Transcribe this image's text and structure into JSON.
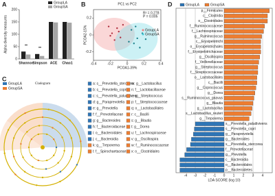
{
  "panel_labels": [
    "A",
    "B",
    "C",
    "D"
  ],
  "chart_data": [
    {
      "type": "bar",
      "y_label": "Alpha diversity measures",
      "categories": [
        "Shannon",
        "Simpson",
        "ACE",
        "Chao1"
      ],
      "series": [
        {
          "name": "GroupLA",
          "color": "#222222",
          "values": [
            30,
            20,
            150,
            150
          ]
        },
        {
          "name": "GroupSA",
          "color": "#a6a6a6",
          "values": [
            18,
            12,
            148,
            147
          ]
        }
      ],
      "annotations": [
        "**",
        "**"
      ],
      "ylim": [
        0,
        200
      ],
      "yticks": [
        0,
        50,
        100,
        150,
        200
      ]
    },
    {
      "type": "scatter",
      "title": "PC1 vs PC2",
      "x_label": "PCOA1-39%",
      "y_label": "PCOA2-15%",
      "annotations": [
        "R² = 0.278",
        "P = 0.005"
      ],
      "series": [
        {
          "name": "GroupLA",
          "color": "#f08080",
          "x": [
            -0.22,
            -0.18,
            -0.12,
            -0.08,
            -0.15,
            -0.05,
            -0.2,
            -0.1
          ],
          "y": [
            0.1,
            0.02,
            0.08,
            -0.03,
            -0.06,
            0.12,
            -0.01,
            0.04
          ]
        },
        {
          "name": "GroupSA",
          "color": "#48c9d6",
          "x": [
            0.05,
            0.12,
            0.18,
            0.08,
            0.15,
            0.22,
            0.02,
            0.1
          ],
          "y": [
            0.06,
            -0.04,
            0.02,
            -0.1,
            -0.15,
            -0.05,
            -0.08,
            0.1
          ]
        }
      ],
      "xlim": [
        -0.4,
        0.4
      ],
      "xticks": [
        -0.4,
        -0.2,
        0,
        0.2,
        0.4
      ],
      "ylim": [
        -0.3,
        0.3
      ],
      "yticks": [
        -0.2,
        0,
        0.2
      ]
    },
    {
      "type": "barh",
      "x_label": "LDA SCORE (log 10)",
      "categories": [
        "p__Firmicutes",
        "c__Clostridia",
        "o__Clostridiales",
        "f__Ruminococcaceae",
        "f__Lachnospiraceae",
        "g__Ruminococcus",
        "c__Erysipelotrichi",
        "o__Erysipelotrichales",
        "f__Erysipelotrichaceae",
        "g__Oscillospira",
        "f__Veillonellaceae",
        "g__Streptococcus",
        "f__Streptococcaceae",
        "o__Lactobacillales",
        "c__Bacilli",
        "g__Coprococcus",
        "g__Dorea",
        "s__Ruminococcus_gnavus",
        "g__Blautia",
        "g__Lactobacillus",
        "s__Lactobacillus_reuteri",
        "g__Treponema",
        "s__Prevotella_paludivivens",
        "s__Prevotella_copri",
        "g__Paraprevotella",
        "g__Bacteroides",
        "s__Prevotella_stercorea",
        "f__Prevotellaceae",
        "g__Prevotella",
        "c__Bacteroidia",
        "o__Bacteroidales",
        "p__Bacteroidetes"
      ],
      "series": [
        {
          "name": "GroupLA",
          "color": "#2e75b6",
          "values": [
            null,
            null,
            null,
            null,
            null,
            null,
            null,
            null,
            null,
            null,
            null,
            null,
            null,
            null,
            null,
            null,
            null,
            null,
            null,
            null,
            null,
            null,
            -3.0,
            -3.1,
            -3.2,
            -3.4,
            -3.5,
            -3.9,
            -4.1,
            -4.6,
            -4.6,
            -4.6
          ]
        },
        {
          "name": "GroupSA",
          "color": "#ed7d31",
          "values": [
            4.7,
            4.5,
            4.5,
            4.2,
            4.1,
            3.9,
            3.8,
            3.8,
            3.8,
            3.7,
            3.6,
            3.5,
            3.5,
            3.4,
            3.4,
            3.3,
            3.2,
            3.1,
            3.0,
            2.9,
            2.8,
            2.6,
            null,
            null,
            null,
            null,
            null,
            null,
            null,
            null,
            null,
            null
          ]
        }
      ],
      "xlim": [
        -5,
        5
      ],
      "xticks": [
        -4,
        -3,
        -2,
        -1,
        0,
        1,
        2,
        3,
        4
      ]
    }
  ],
  "cladogram": {
    "title": "Cladogram",
    "legend": [
      {
        "name": "GroupLA",
        "color": "#2e75b6"
      },
      {
        "name": "GroupSA",
        "color": "#ed7d31"
      }
    ],
    "taxa": [
      {
        "label": "a: s__Prevotella_stercorea",
        "color": "#2e75b6"
      },
      {
        "label": "b: s__Prevotella_copri",
        "color": "#2e75b6"
      },
      {
        "label": "c: s__Prevotella_paludivivens",
        "color": "#2e75b6"
      },
      {
        "label": "d: g__Paraprevotella",
        "color": "#2e75b6"
      },
      {
        "label": "e: g__Prevotella",
        "color": "#2e75b6"
      },
      {
        "label": "f: f__Prevotellaceae",
        "color": "#2e75b6"
      },
      {
        "label": "g: g__Bacteroides",
        "color": "#2e75b6"
      },
      {
        "label": "h: f__Bacteroidaceae",
        "color": "#2e75b6"
      },
      {
        "label": "i: o__Bacteroidales",
        "color": "#2e75b6"
      },
      {
        "label": "j: c__Bacteroidia",
        "color": "#2e75b6"
      },
      {
        "label": "k: g__Treponema",
        "color": "#ed7d31"
      },
      {
        "label": "l: f__Spirochaetaceae",
        "color": "#ed7d31"
      },
      {
        "label": "m: g__Lactobacillus",
        "color": "#ed7d31"
      },
      {
        "label": "n: f__Lactobacillaceae",
        "color": "#ed7d31"
      },
      {
        "label": "o: g__Streptococcus",
        "color": "#ed7d31"
      },
      {
        "label": "p: f__Streptococcaceae",
        "color": "#ed7d31"
      },
      {
        "label": "q: o__Lactobacillales",
        "color": "#ed7d31"
      },
      {
        "label": "r: c__Bacilli",
        "color": "#ed7d31"
      },
      {
        "label": "s: g__Blautia",
        "color": "#ed7d31"
      },
      {
        "label": "t: g__Dorea",
        "color": "#ed7d31"
      },
      {
        "label": "u: f__Lachnospiraceae",
        "color": "#ed7d31"
      },
      {
        "label": "v: g__Oscillospira",
        "color": "#ed7d31"
      },
      {
        "label": "w: f__Ruminococcaceae",
        "color": "#ed7d31"
      },
      {
        "label": "x: o__Clostridiales",
        "color": "#ed7d31"
      }
    ]
  }
}
